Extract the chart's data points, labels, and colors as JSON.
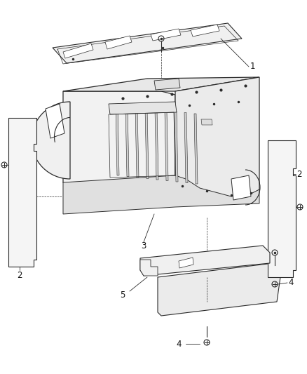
{
  "background_color": "#ffffff",
  "fig_width": 4.38,
  "fig_height": 5.33,
  "dpi": 100,
  "line_color": "#2a2a2a",
  "fill_color": "#f8f8f8",
  "label_color": "#111111",
  "label_fontsize": 8.5
}
